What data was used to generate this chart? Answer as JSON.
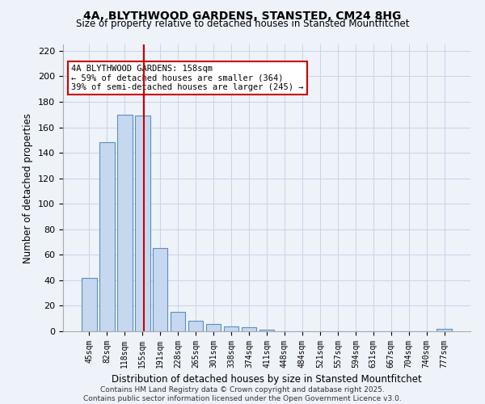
{
  "title": "4A, BLYTHWOOD GARDENS, STANSTED, CM24 8HG",
  "subtitle": "Size of property relative to detached houses in Stansted Mountfitchet",
  "xlabel": "Distribution of detached houses by size in Stansted Mountfitchet",
  "ylabel": "Number of detached properties",
  "categories": [
    "45sqm",
    "82sqm",
    "118sqm",
    "155sqm",
    "191sqm",
    "228sqm",
    "265sqm",
    "301sqm",
    "338sqm",
    "374sqm",
    "411sqm",
    "448sqm",
    "484sqm",
    "521sqm",
    "557sqm",
    "594sqm",
    "631sqm",
    "667sqm",
    "704sqm",
    "740sqm",
    "777sqm"
  ],
  "values": [
    42,
    148,
    170,
    169,
    65,
    15,
    8,
    6,
    4,
    3,
    1,
    0,
    0,
    0,
    0,
    0,
    0,
    0,
    0,
    0,
    2
  ],
  "bar_color": "#c5d8f0",
  "bar_edge_color": "#5a8fc0",
  "vline_color": "#cc0000",
  "vline_pos": 3.08,
  "annotation_text": "4A BLYTHWOOD GARDENS: 158sqm\n← 59% of detached houses are smaller (364)\n39% of semi-detached houses are larger (245) →",
  "annotation_box_facecolor": "#ffffff",
  "annotation_box_edgecolor": "#cc0000",
  "ylim": [
    0,
    225
  ],
  "yticks": [
    0,
    20,
    40,
    60,
    80,
    100,
    120,
    140,
    160,
    180,
    200,
    220
  ],
  "footer": "Contains HM Land Registry data © Crown copyright and database right 2025.\nContains public sector information licensed under the Open Government Licence v3.0.",
  "bg_color": "#eef2f9",
  "grid_color": "#c8d4e8"
}
